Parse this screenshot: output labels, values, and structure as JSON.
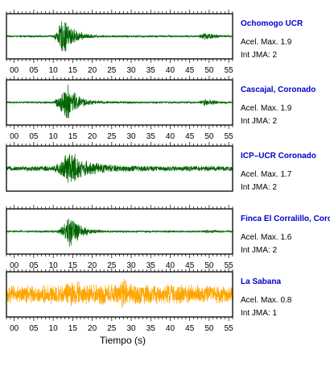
{
  "chart_data": {
    "type": "line",
    "x_unit_label": "Tiempo (s)",
    "xlim": [
      -2,
      56
    ],
    "xticks": [
      0,
      5,
      10,
      15,
      20,
      25,
      30,
      35,
      40,
      45,
      50,
      55
    ],
    "xtick_labels": [
      "00",
      "05",
      "10",
      "15",
      "20",
      "25",
      "30",
      "35",
      "40",
      "45",
      "50",
      "55"
    ],
    "xticks_minor_step": 1,
    "grid": false,
    "legend": "none",
    "panels": [
      {
        "station": "Ochomogo UCR",
        "color": "#006400",
        "acel_label": "Acel. Max.",
        "acel_value": 1.9,
        "jma_label": "Int JMA:",
        "jma_value": 2,
        "envelope": [
          {
            "t": 0,
            "a": 0.04
          },
          {
            "t": 10,
            "a": 0.05
          },
          {
            "t": 11,
            "a": 0.35
          },
          {
            "t": 12.5,
            "a": 0.95
          },
          {
            "t": 14,
            "a": 0.7
          },
          {
            "t": 15.5,
            "a": 0.35
          },
          {
            "t": 18,
            "a": 0.15
          },
          {
            "t": 22,
            "a": 0.06
          },
          {
            "t": 47,
            "a": 0.04
          },
          {
            "t": 48.5,
            "a": 0.22
          },
          {
            "t": 50,
            "a": 0.18
          },
          {
            "t": 53,
            "a": 0.06
          },
          {
            "t": 56,
            "a": 0.04
          }
        ]
      },
      {
        "station": "Cascajal, Coronado",
        "color": "#006400",
        "acel_label": "Acel. Max.",
        "acel_value": 1.9,
        "jma_label": "Int JMA:",
        "jma_value": 2,
        "envelope": [
          {
            "t": 0,
            "a": 0.04
          },
          {
            "t": 10,
            "a": 0.05
          },
          {
            "t": 11.5,
            "a": 0.35
          },
          {
            "t": 13.5,
            "a": 0.95
          },
          {
            "t": 15,
            "a": 0.7
          },
          {
            "t": 16.5,
            "a": 0.35
          },
          {
            "t": 19,
            "a": 0.15
          },
          {
            "t": 23,
            "a": 0.06
          },
          {
            "t": 47,
            "a": 0.04
          },
          {
            "t": 49,
            "a": 0.2
          },
          {
            "t": 51,
            "a": 0.14
          },
          {
            "t": 53,
            "a": 0.05
          },
          {
            "t": 56,
            "a": 0.04
          }
        ]
      },
      {
        "station": "ICP–UCR Coronado",
        "color": "#006400",
        "acel_label": "Acel. Max.",
        "acel_value": 1.7,
        "jma_label": "Int JMA:",
        "jma_value": 2,
        "envelope": [
          {
            "t": 0,
            "a": 0.12
          },
          {
            "t": 10,
            "a": 0.15
          },
          {
            "t": 12,
            "a": 0.45
          },
          {
            "t": 14,
            "a": 0.95
          },
          {
            "t": 15.5,
            "a": 0.85
          },
          {
            "t": 17,
            "a": 0.5
          },
          {
            "t": 20,
            "a": 0.32
          },
          {
            "t": 25,
            "a": 0.2
          },
          {
            "t": 35,
            "a": 0.14
          },
          {
            "t": 56,
            "a": 0.14
          }
        ]
      },
      {
        "station": "Finca El Corralillo, Coronado",
        "color": "#006400",
        "acel_label": "Acel. Max.",
        "acel_value": 1.6,
        "jma_label": "Int JMA:",
        "jma_value": 2,
        "envelope": [
          {
            "t": 0,
            "a": 0.04
          },
          {
            "t": 11,
            "a": 0.05
          },
          {
            "t": 12.5,
            "a": 0.3
          },
          {
            "t": 14.5,
            "a": 0.95
          },
          {
            "t": 15.5,
            "a": 0.65
          },
          {
            "t": 17,
            "a": 0.3
          },
          {
            "t": 20,
            "a": 0.12
          },
          {
            "t": 24,
            "a": 0.05
          },
          {
            "t": 48,
            "a": 0.04
          },
          {
            "t": 50,
            "a": 0.1
          },
          {
            "t": 52,
            "a": 0.06
          },
          {
            "t": 56,
            "a": 0.04
          }
        ]
      },
      {
        "station": "La Sabana",
        "color": "#ffa500",
        "acel_label": "Acel. Max.",
        "acel_value": 0.8,
        "jma_label": "Int JMA:",
        "jma_value": 1,
        "envelope": [
          {
            "t": 0,
            "a": 0.45
          },
          {
            "t": 12,
            "a": 0.5
          },
          {
            "t": 15,
            "a": 0.75
          },
          {
            "t": 18,
            "a": 0.55
          },
          {
            "t": 27,
            "a": 0.55
          },
          {
            "t": 28,
            "a": 0.95
          },
          {
            "t": 29,
            "a": 0.55
          },
          {
            "t": 56,
            "a": 0.45
          }
        ]
      }
    ]
  }
}
